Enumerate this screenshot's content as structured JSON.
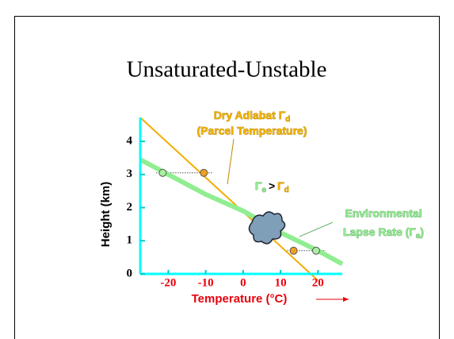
{
  "chart_data": {
    "type": "line",
    "title": "Unsaturated-Unstable",
    "xlabel": "Temperature (°C)",
    "ylabel": "Height (km)",
    "xlim": [
      -27.5,
      26.5
    ],
    "ylim": [
      0,
      4.72
    ],
    "xticks": [
      -20,
      -10,
      0,
      10,
      20
    ],
    "yticks": [
      0,
      1,
      2,
      3,
      4
    ],
    "series": [
      {
        "color": "#f2ad00",
        "x": [
          -27.5,
          20
        ],
        "values": [
          4.72,
          -0.2
        ]
      },
      {
        "color": "#90ee90",
        "x": [
          -27.5,
          -15,
          -10,
          0,
          10,
          20,
          26.5
        ],
        "values": [
          3.45,
          2.7,
          2.4,
          1.9,
          1.25,
          0.7,
          0.3
        ]
      }
    ],
    "markers": [
      {
        "color": "#f0a020",
        "x": [
          -10.5,
          13.5
        ],
        "values": [
          3.05,
          0.7
        ]
      },
      {
        "color": "#a8f0a0",
        "x": [
          -21.5,
          19.5
        ],
        "values": [
          3.05,
          0.7
        ]
      }
    ],
    "annotations": {
      "dry": [
        "Dry Adiabat Γ",
        "d"
      ],
      "parcel": "(Parcel Temperature)",
      "compare": [
        "Γ",
        "e",
        ">",
        "Γ",
        "d"
      ],
      "env1": "Environmental",
      "env2": [
        "Lapse Rate (Γ",
        "e",
        ")"
      ]
    }
  }
}
